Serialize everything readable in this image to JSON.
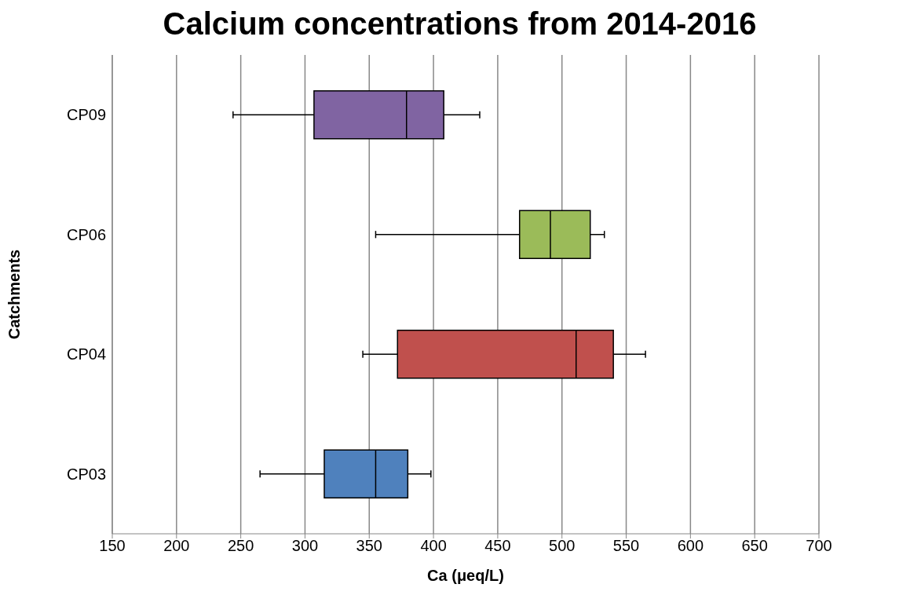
{
  "chart_data": {
    "type": "box",
    "orientation": "horizontal",
    "title": "Calcium concentrations from 2014-2016",
    "xlabel": "Ca (μeq/L)",
    "ylabel": "Catchments",
    "categories": [
      "CP09",
      "CP06",
      "CP04",
      "CP03"
    ],
    "colors": [
      "#8064a2",
      "#9bbb59",
      "#c0504d",
      "#4f81bd"
    ],
    "boxes": [
      {
        "low": 244,
        "q1": 307,
        "median": 379,
        "q3": 408,
        "high": 436
      },
      {
        "low": 355,
        "q1": 467,
        "median": 491,
        "q3": 522,
        "high": 533
      },
      {
        "low": 345,
        "q1": 372,
        "median": 511,
        "q3": 540,
        "high": 565
      },
      {
        "low": 265,
        "q1": 315,
        "median": 355,
        "q3": 380,
        "high": 398
      }
    ],
    "xlim": [
      150,
      700
    ],
    "xticks": [
      150,
      200,
      250,
      300,
      350,
      400,
      450,
      500,
      550,
      600,
      650,
      700
    ],
    "grid": "x"
  }
}
